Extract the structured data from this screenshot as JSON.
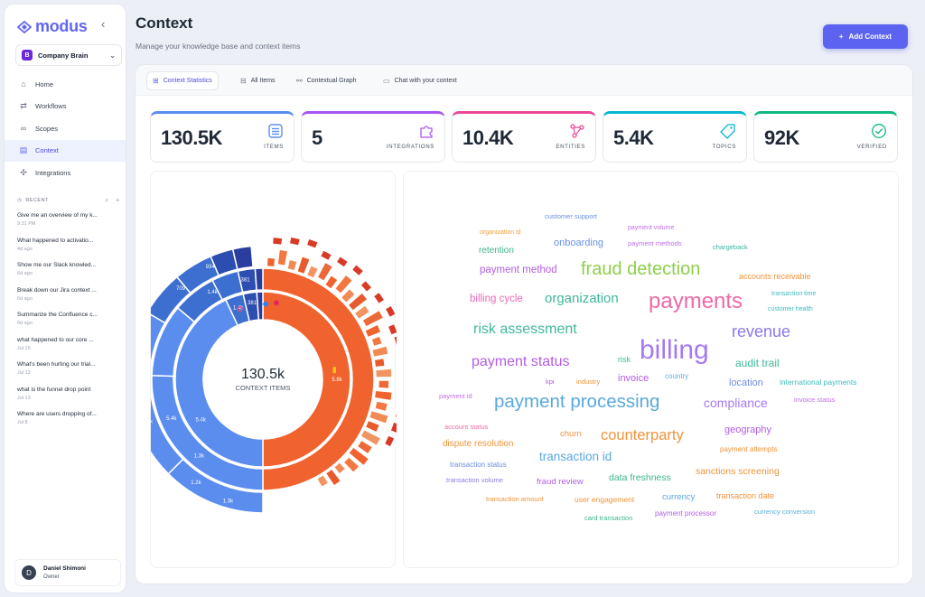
{
  "app": {
    "logo": "modus"
  },
  "colors": {
    "accent": "#5b63f0"
  },
  "sidebar": {
    "org": "Company Brain",
    "org_badge": "B",
    "nav": [
      {
        "label": "Home",
        "icon": "home-icon"
      },
      {
        "label": "Workflows",
        "icon": "workflows-icon"
      },
      {
        "label": "Scopes",
        "icon": "scopes-icon"
      },
      {
        "label": "Context",
        "icon": "context-icon",
        "active": true
      },
      {
        "label": "Integrations",
        "icon": "integrations-icon"
      }
    ],
    "recent_label": "RECENT",
    "recent": [
      {
        "title": "Give me an overview of my k...",
        "time": "9:31 PM"
      },
      {
        "title": "What happened to activatio...",
        "time": "4d ago"
      },
      {
        "title": "Show me our Slack knowled...",
        "time": "6d ago"
      },
      {
        "title": "Break down our Jira context ...",
        "time": "6d ago"
      },
      {
        "title": "Summarize the Confluence c...",
        "time": "6d ago"
      },
      {
        "title": "what happened to our core ...",
        "time": "Jul 15"
      },
      {
        "title": "What's been hurting our trial...",
        "time": "Jul 13"
      },
      {
        "title": "what is the funnel drop point",
        "time": "Jul 13"
      },
      {
        "title": "Where are users dropping of...",
        "time": "Jul 8"
      }
    ],
    "user": {
      "initial": "D",
      "name": "Daniel Shimoni",
      "role": "Owner"
    }
  },
  "header": {
    "title": "Context",
    "subtitle": "Manage your knowledge base and context items",
    "add_button": "Add Context"
  },
  "tabs": [
    {
      "label": "Context Statistics",
      "active": true
    },
    {
      "label": "All Items"
    },
    {
      "label": "Contextual Graph"
    },
    {
      "label": "Chat with your context"
    }
  ],
  "stats": [
    {
      "value": "130.5K",
      "label": "ITEMS",
      "color": "#5b8def",
      "icon": "items-icon"
    },
    {
      "value": "5",
      "label": "INTEGRATIONS",
      "color": "#a855f7",
      "icon": "puzzle-icon"
    },
    {
      "value": "10.4K",
      "label": "ENTITIES",
      "color": "#ec4899",
      "icon": "entities-icon"
    },
    {
      "value": "5.4K",
      "label": "TOPICS",
      "color": "#06b6d4",
      "icon": "tag-icon"
    },
    {
      "value": "92K",
      "label": "VERIFIED",
      "color": "#10b981",
      "icon": "check-circle-icon"
    }
  ],
  "sunburst": {
    "total": "130.5k",
    "total_label": "CONTEXT ITEMS",
    "labels": [
      "1.2k",
      "1.2k",
      "5.4k",
      "5.4k",
      "1.3k",
      "1.3k",
      "709",
      "1.4k",
      "1.4k",
      "934",
      "381",
      "381",
      "5.8k"
    ]
  },
  "word_cloud": [
    {
      "text": "customer support",
      "color": "#6b8fe0"
    },
    {
      "text": "payment volume",
      "color": "#c06ee8"
    },
    {
      "text": "organization id",
      "color": "#f0a040"
    },
    {
      "text": "onboarding",
      "color": "#6b8fe0"
    },
    {
      "text": "payment methods",
      "color": "#c06ee8"
    },
    {
      "text": "retention",
      "color": "#3cb58a"
    },
    {
      "text": "chargeback",
      "color": "#3cb5a0"
    },
    {
      "text": "payment method",
      "color": "#b25de6"
    },
    {
      "text": "fraud detection",
      "color": "#8dd04a"
    },
    {
      "text": "accounts receivable",
      "color": "#f0943a"
    },
    {
      "text": "billing cycle",
      "color": "#e86ab5"
    },
    {
      "text": "organization",
      "color": "#3fb89c"
    },
    {
      "text": "payments",
      "color": "#ec6aa8"
    },
    {
      "text": "transaction time",
      "color": "#3fbcc0"
    },
    {
      "text": "customer health",
      "color": "#3fbcc0"
    },
    {
      "text": "risk assessment",
      "color": "#3fb89c"
    },
    {
      "text": "revenue",
      "color": "#8b7ae8"
    },
    {
      "text": "billing",
      "color": "#a57af0"
    },
    {
      "text": "payment status",
      "color": "#b25de6"
    },
    {
      "text": "risk",
      "color": "#3fbca0"
    },
    {
      "text": "audit trail",
      "color": "#3fb89c"
    },
    {
      "text": "kpi",
      "color": "#b25de6"
    },
    {
      "text": "industry",
      "color": "#f0943a"
    },
    {
      "text": "invoice",
      "color": "#b25de6"
    },
    {
      "text": "country",
      "color": "#5ab0e0"
    },
    {
      "text": "location",
      "color": "#6b8fe0"
    },
    {
      "text": "international payments",
      "color": "#3fbcc0"
    },
    {
      "text": "payment id",
      "color": "#c06ee8"
    },
    {
      "text": "payment processing",
      "color": "#5aa8e0"
    },
    {
      "text": "compliance",
      "color": "#a57af0"
    },
    {
      "text": "invoice status",
      "color": "#c06ee8"
    },
    {
      "text": "account status",
      "color": "#ec6aa8"
    },
    {
      "text": "churn",
      "color": "#f0943a"
    },
    {
      "text": "counterparty",
      "color": "#f0943a"
    },
    {
      "text": "geography",
      "color": "#b25de6"
    },
    {
      "text": "dispute resolution",
      "color": "#f0943a"
    },
    {
      "text": "payment attempts",
      "color": "#f0943a"
    },
    {
      "text": "transaction id",
      "color": "#5aa8e0"
    },
    {
      "text": "transaction status",
      "color": "#6b8fe0"
    },
    {
      "text": "sanctions screening",
      "color": "#f0943a"
    },
    {
      "text": "transaction volume",
      "color": "#8b7ae8"
    },
    {
      "text": "fraud review",
      "color": "#b25de6"
    },
    {
      "text": "data freshness",
      "color": "#3cb58a"
    },
    {
      "text": "transaction amount",
      "color": "#f0943a"
    },
    {
      "text": "user engagement",
      "color": "#f0943a"
    },
    {
      "text": "currency",
      "color": "#5aa8e0"
    },
    {
      "text": "transaction date",
      "color": "#f0943a"
    },
    {
      "text": "card transaction",
      "color": "#3cb58a"
    },
    {
      "text": "payment processor",
      "color": "#b25de6"
    },
    {
      "text": "currency conversion",
      "color": "#5ab0e0"
    }
  ]
}
